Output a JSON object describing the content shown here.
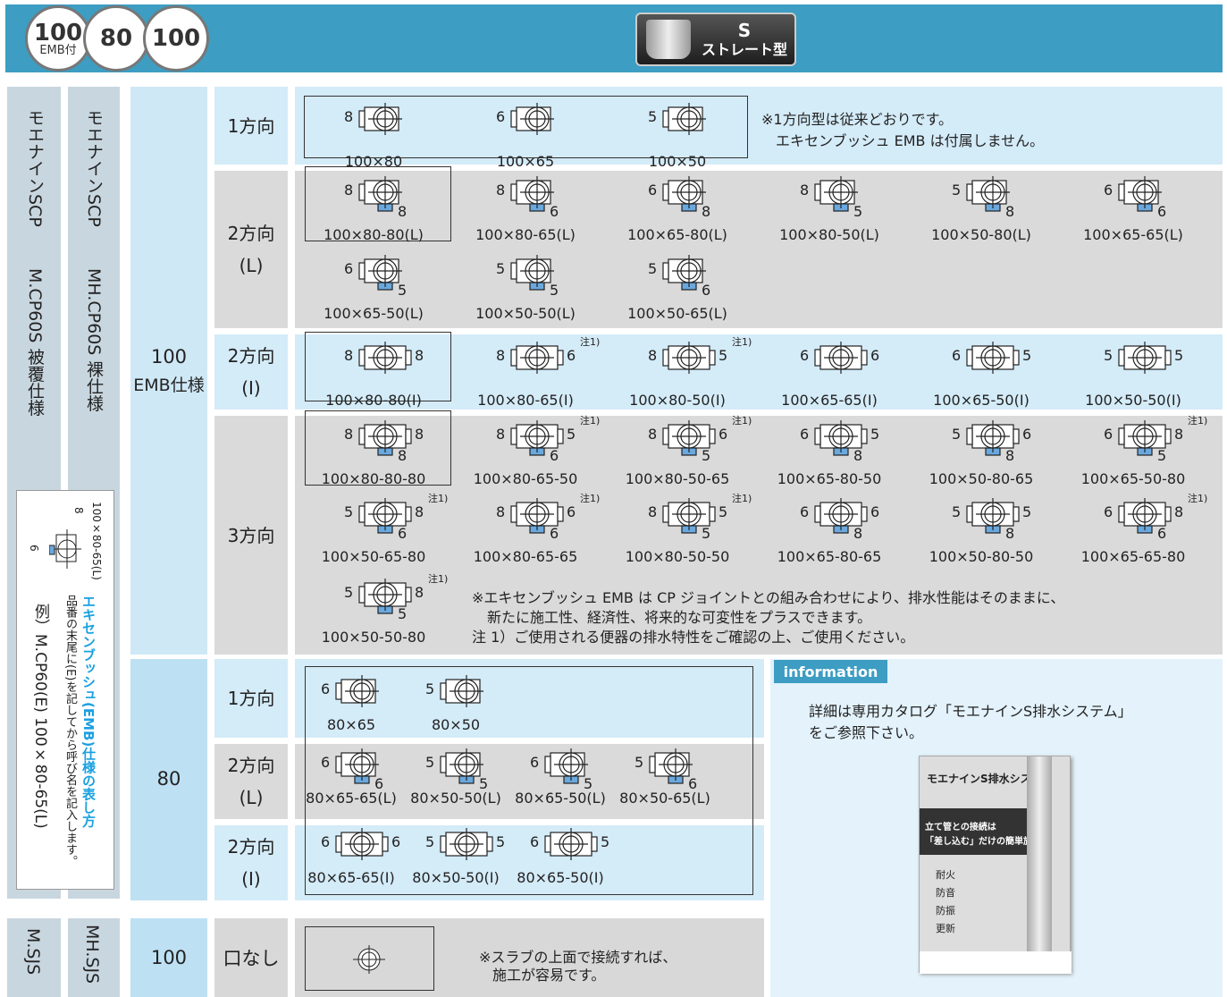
{
  "header": {
    "badges": [
      {
        "num": "100",
        "sub": "EMB付"
      },
      {
        "num": "80"
      },
      {
        "num": "100"
      }
    ],
    "type_badge": {
      "letter": "S",
      "name": "ストレート型"
    }
  },
  "columns": {
    "coated": {
      "name": "モエナインSCP",
      "code": "M.CP60S 被覆仕様"
    },
    "bare": {
      "name": "モエナインSCP",
      "code": "MH.CP60S 裸仕様"
    }
  },
  "example": {
    "caption": "100×80-65(L)",
    "left": "8",
    "bottom": "6",
    "title": "エキセンブッシュ(EMB)仕様の表し方",
    "desc": "品番の末尾に(E)を記してから呼び名を記入します。",
    "sample": "例）M.CP60(E) 100×80-65(L)"
  },
  "sections": [
    {
      "size": "100",
      "spec": "EMB仕様",
      "rows": [
        {
          "dir": [
            "1方向"
          ],
          "lines": [
            [
              {
                "l": "8",
                "c": "100×80"
              },
              {
                "l": "6",
                "c": "100×65"
              },
              {
                "l": "5",
                "c": "100×50"
              }
            ]
          ],
          "notes": [
            "※1方向型は従来どおりです。",
            "エキセンブッシュ EMB は付属しません。"
          ]
        },
        {
          "dir": [
            "2方向",
            "(L)"
          ],
          "lines": [
            [
              {
                "l": "8",
                "b": "8",
                "c": "100×80-80(L)"
              },
              {
                "l": "8",
                "b": "6",
                "c": "100×80-65(L)"
              },
              {
                "l": "6",
                "b": "8",
                "c": "100×65-80(L)"
              },
              {
                "l": "8",
                "b": "5",
                "c": "100×80-50(L)"
              },
              {
                "l": "5",
                "b": "8",
                "c": "100×50-80(L)"
              },
              {
                "l": "6",
                "b": "6",
                "c": "100×65-65(L)"
              }
            ],
            [
              {
                "l": "6",
                "b": "5",
                "c": "100×65-50(L)"
              },
              {
                "l": "5",
                "b": "5",
                "c": "100×50-50(L)"
              },
              {
                "l": "5",
                "b": "6",
                "c": "100×50-65(L)"
              }
            ]
          ]
        },
        {
          "dir": [
            "2方向",
            "(I)"
          ],
          "lines": [
            [
              {
                "l": "8",
                "r": "8",
                "c": "100×80-80(I)"
              },
              {
                "l": "8",
                "r": "6",
                "n": "注1)",
                "c": "100×80-65(I)"
              },
              {
                "l": "8",
                "r": "5",
                "n": "注1)",
                "c": "100×80-50(I)"
              },
              {
                "l": "6",
                "r": "6",
                "c": "100×65-65(I)"
              },
              {
                "l": "6",
                "r": "5",
                "c": "100×65-50(I)"
              },
              {
                "l": "5",
                "r": "5",
                "c": "100×50-50(I)"
              }
            ]
          ]
        },
        {
          "dir": [
            "3方向"
          ],
          "lines": [
            [
              {
                "l": "8",
                "r": "8",
                "b": "8",
                "c": "100×80-80-80"
              },
              {
                "l": "8",
                "r": "5",
                "b": "6",
                "n": "注1)",
                "c": "100×80-65-50"
              },
              {
                "l": "8",
                "r": "6",
                "b": "5",
                "n": "注1)",
                "c": "100×80-50-65"
              },
              {
                "l": "6",
                "r": "5",
                "b": "8",
                "c": "100×65-80-50"
              },
              {
                "l": "5",
                "r": "6",
                "b": "8",
                "c": "100×50-80-65"
              },
              {
                "l": "6",
                "r": "8",
                "b": "5",
                "n": "注1)",
                "c": "100×65-50-80"
              }
            ],
            [
              {
                "l": "5",
                "r": "8",
                "b": "6",
                "n": "注1)",
                "c": "100×50-65-80"
              },
              {
                "l": "8",
                "r": "6",
                "b": "6",
                "n": "注1)",
                "c": "100×80-65-65"
              },
              {
                "l": "8",
                "r": "5",
                "b": "5",
                "n": "注1)",
                "c": "100×80-50-50"
              },
              {
                "l": "6",
                "r": "6",
                "b": "8",
                "c": "100×65-80-65"
              },
              {
                "l": "5",
                "r": "5",
                "b": "8",
                "c": "100×50-80-50"
              },
              {
                "l": "6",
                "r": "8",
                "b": "6",
                "n": "注1)",
                "c": "100×65-65-80"
              }
            ],
            [
              {
                "l": "5",
                "r": "8",
                "b": "5",
                "n": "注1)",
                "c": "100×50-50-80"
              }
            ]
          ],
          "notes": [
            "※エキセンブッシュ EMB は CP ジョイントとの組み合わせにより、排水性能はそのままに、",
            "新たに施工性、経済性、将来的な可変性をプラスできます。",
            "注 1）ご使用される便器の排水特性をご確認の上、ご使用ください。"
          ]
        }
      ]
    },
    {
      "size": "80",
      "rows": [
        {
          "dir": [
            "1方向"
          ],
          "lines": [
            [
              {
                "l": "6",
                "c": "80×65"
              },
              {
                "l": "5",
                "c": "80×50"
              }
            ]
          ]
        },
        {
          "dir": [
            "2方向",
            "(L)"
          ],
          "lines": [
            [
              {
                "l": "6",
                "b": "6",
                "c": "80×65-65(L)"
              },
              {
                "l": "5",
                "b": "5",
                "c": "80×50-50(L)"
              },
              {
                "l": "6",
                "b": "5",
                "c": "80×65-50(L)"
              },
              {
                "l": "5",
                "b": "6",
                "c": "80×50-65(L)"
              }
            ]
          ]
        },
        {
          "dir": [
            "2方向",
            "(I)"
          ],
          "lines": [
            [
              {
                "l": "6",
                "r": "6",
                "c": "80×65-65(I)"
              },
              {
                "l": "5",
                "r": "5",
                "c": "80×50-50(I)"
              },
              {
                "l": "6",
                "r": "5",
                "c": "80×65-50(I)"
              }
            ]
          ]
        }
      ]
    }
  ],
  "info": {
    "tab": "information",
    "text": [
      "詳細は専用カタログ「モエナインS排水システム」",
      "をご参照下さい。"
    ],
    "catalog": {
      "title": "モエナインS排水システム",
      "headline": [
        "立て管との接続は",
        "「差し込む」だけの簡単施工!"
      ],
      "features": [
        "耐火",
        "防音",
        "防振",
        "更新"
      ]
    }
  },
  "bottom": {
    "coated": "M.SJS",
    "bare": "MH.SJS",
    "size": "100",
    "dir": "口なし",
    "notes": [
      "※スラブの上面で接続すれば、",
      "施工が容易です。"
    ]
  }
}
